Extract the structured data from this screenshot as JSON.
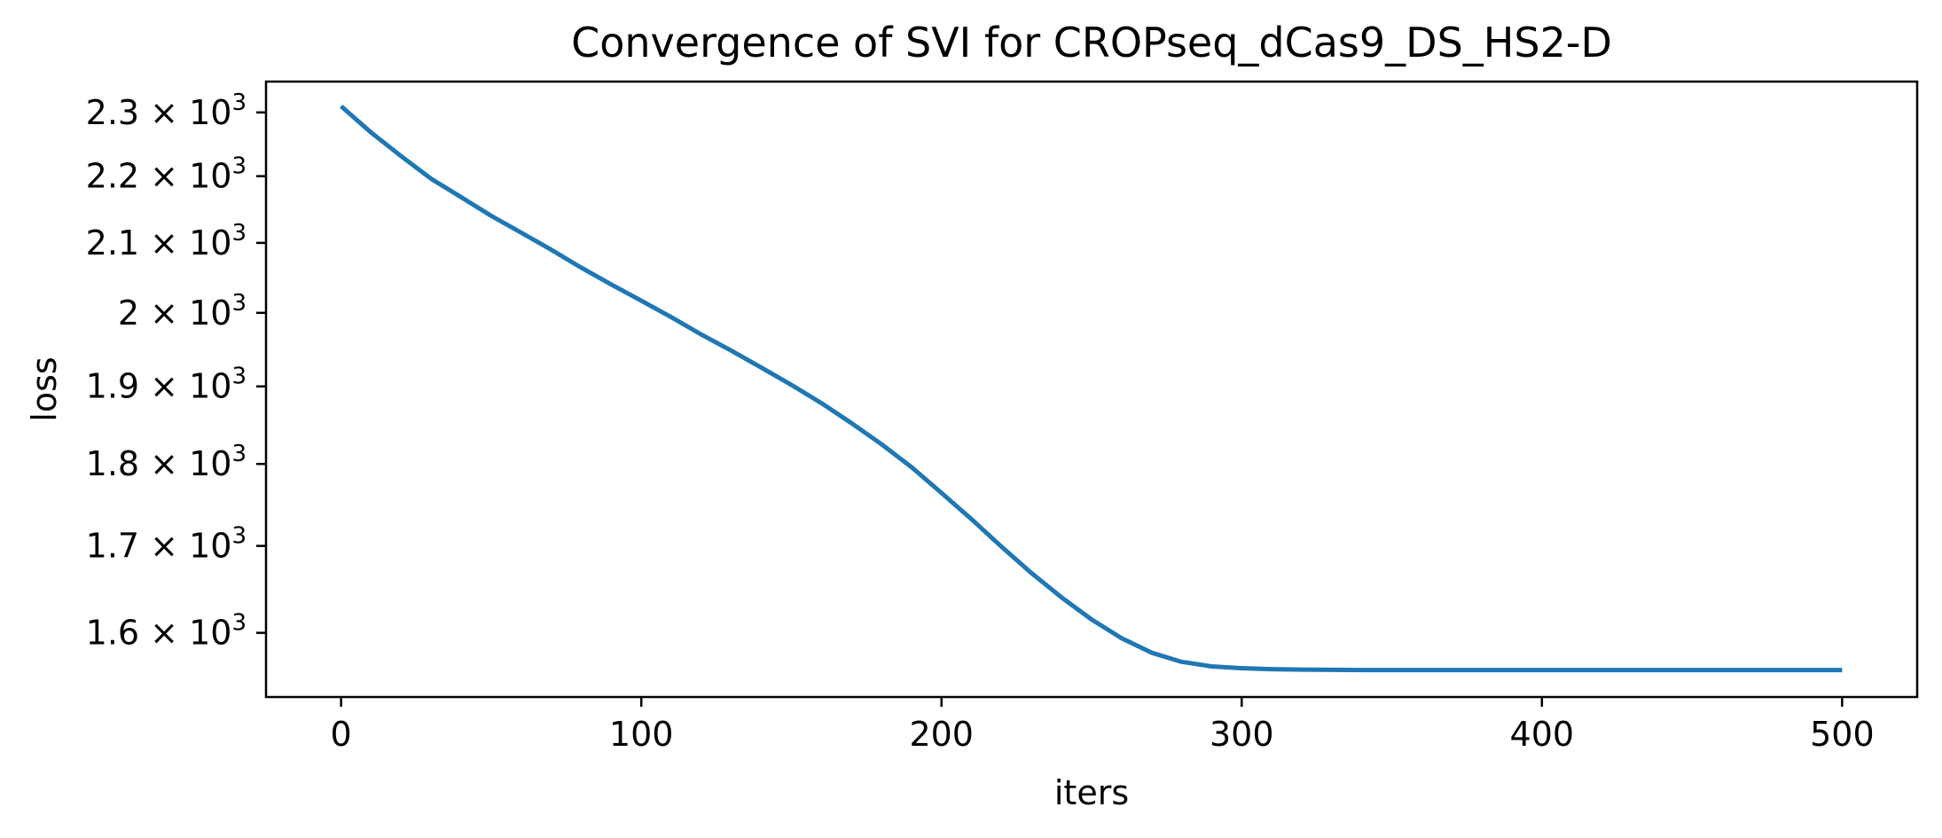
{
  "chart_data": {
    "type": "line",
    "title": "Convergence of SVI for CROPseq_dCas9_DS_HS2-D",
    "xlabel": "iters",
    "ylabel": "loss",
    "xscale": "linear",
    "yscale": "log",
    "xlim": [
      -25,
      525
    ],
    "ylim": [
      1530,
      2350
    ],
    "grid": false,
    "legend": "none",
    "line_color": "#1f77b4",
    "xticks": [
      {
        "value": 0,
        "label": "0"
      },
      {
        "value": 100,
        "label": "100"
      },
      {
        "value": 200,
        "label": "200"
      },
      {
        "value": 300,
        "label": "300"
      },
      {
        "value": 400,
        "label": "400"
      },
      {
        "value": 500,
        "label": "500"
      }
    ],
    "yticks": [
      {
        "value": 1600,
        "label": "1.6 × 10",
        "exp": "3"
      },
      {
        "value": 1700,
        "label": "1.7 × 10",
        "exp": "3"
      },
      {
        "value": 1800,
        "label": "1.8 × 10",
        "exp": "3"
      },
      {
        "value": 1900,
        "label": "1.9 × 10",
        "exp": "3"
      },
      {
        "value": 2000,
        "label": "2 × 10",
        "exp": "3"
      },
      {
        "value": 2100,
        "label": "2.1 × 10",
        "exp": "3"
      },
      {
        "value": 2200,
        "label": "2.2 × 10",
        "exp": "3"
      },
      {
        "value": 2300,
        "label": "2.3 × 10",
        "exp": "3"
      }
    ],
    "series": [
      {
        "x": [
          0,
          10,
          20,
          30,
          40,
          50,
          60,
          70,
          80,
          90,
          100,
          110,
          120,
          130,
          140,
          150,
          160,
          170,
          180,
          190,
          200,
          210,
          220,
          230,
          240,
          250,
          260,
          270,
          280,
          290,
          300,
          310,
          320,
          340,
          360,
          380,
          400,
          420,
          440,
          460,
          480,
          500
        ],
        "y": [
          2310,
          2268,
          2231,
          2196,
          2168,
          2140,
          2115,
          2090,
          2064,
          2040,
          2017,
          1994,
          1970,
          1948,
          1925,
          1902,
          1878,
          1852,
          1825,
          1796,
          1764,
          1732,
          1699,
          1668,
          1640,
          1615,
          1594,
          1578,
          1568,
          1563,
          1561,
          1560,
          1559.5,
          1559,
          1559,
          1559,
          1559,
          1559,
          1559,
          1559,
          1559,
          1559
        ]
      }
    ]
  }
}
